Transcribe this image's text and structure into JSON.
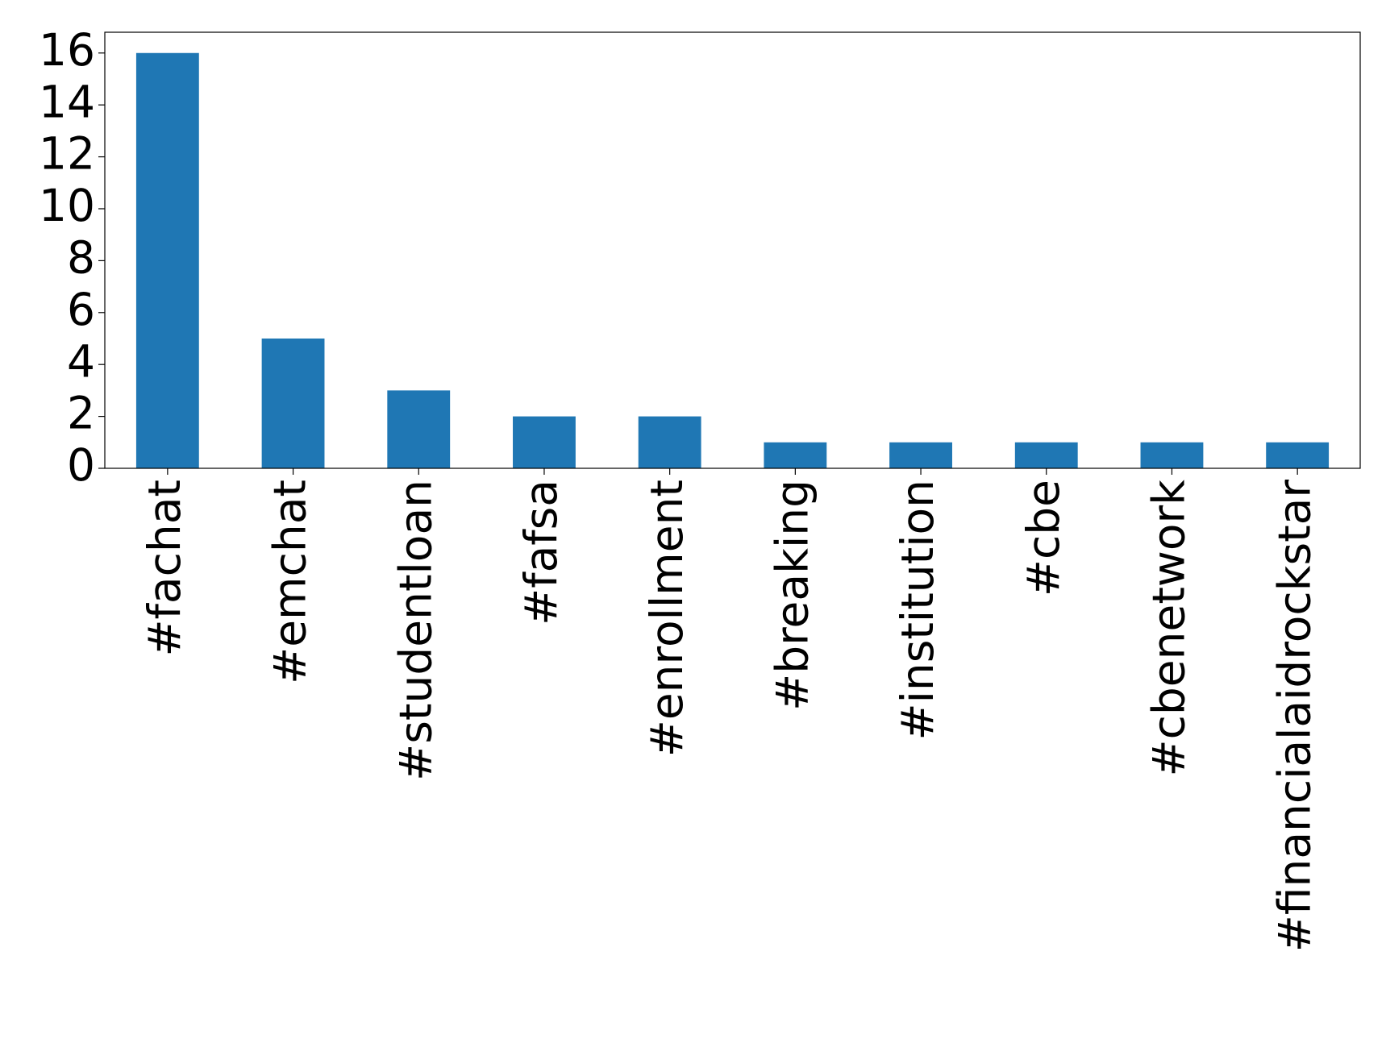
{
  "chart_data": {
    "type": "bar",
    "categories": [
      "#fachat",
      "#emchat",
      "#studentloan",
      "#fafsa",
      "#enrollment",
      "#breaking",
      "#institution",
      "#cbe",
      "#cbenetwork",
      "#financialaidrockstar"
    ],
    "values": [
      16,
      5,
      3,
      2,
      2,
      1,
      1,
      1,
      1,
      1
    ],
    "color": "#1f77b4",
    "ylim": [
      0,
      16.8
    ],
    "yticks": [
      0,
      2,
      4,
      6,
      8,
      10,
      12,
      14,
      16
    ],
    "grid": false
  }
}
